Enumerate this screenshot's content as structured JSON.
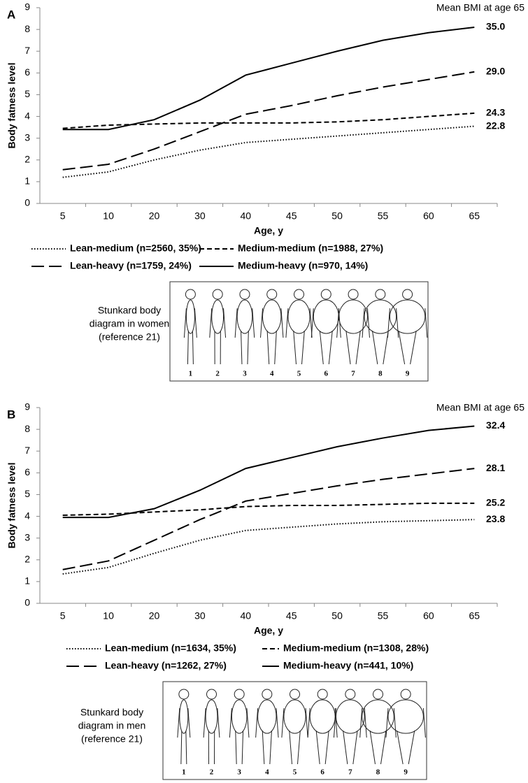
{
  "chart_data": [
    {
      "type": "line",
      "panel": "A",
      "annotation": "Mean BMI at age 65",
      "ylabel": "Body fatness level",
      "xlabel": "Age, y",
      "categories": [
        5,
        10,
        20,
        30,
        40,
        45,
        50,
        55,
        60,
        65
      ],
      "ylim": [
        0,
        9
      ],
      "yticks": [
        0,
        1,
        2,
        3,
        4,
        5,
        6,
        7,
        8,
        9
      ],
      "series": [
        {
          "name": "Lean-medium (n=2560, 35%)",
          "color": "#000000",
          "dash": "dotted",
          "end_label": "22.8",
          "values": [
            1.2,
            1.45,
            2.0,
            2.45,
            2.8,
            2.95,
            3.1,
            3.25,
            3.4,
            3.55
          ]
        },
        {
          "name": "Medium-medium (n=1988, 27%)",
          "color": "#000000",
          "dash": "short-dash",
          "end_label": "24.3",
          "values": [
            3.45,
            3.6,
            3.65,
            3.7,
            3.7,
            3.7,
            3.75,
            3.85,
            4.0,
            4.15
          ]
        },
        {
          "name": "Lean-heavy (n=1759, 24%)",
          "color": "#000000",
          "dash": "long-dash",
          "end_label": "29.0",
          "values": [
            1.55,
            1.8,
            2.5,
            3.3,
            4.1,
            4.5,
            4.95,
            5.35,
            5.7,
            6.05
          ]
        },
        {
          "name": "Medium-heavy (n=970, 14%)",
          "color": "#000000",
          "dash": "solid",
          "end_label": "35.0",
          "values": [
            3.4,
            3.4,
            3.85,
            4.75,
            5.9,
            6.45,
            7.0,
            7.5,
            7.85,
            8.1
          ]
        }
      ],
      "diagram": {
        "caption": [
          "Stunkard body",
          "diagram in women",
          "(reference 21)"
        ],
        "labels": [
          "1",
          "2",
          "3",
          "4",
          "5",
          "6",
          "7",
          "8",
          "9"
        ]
      }
    },
    {
      "type": "line",
      "panel": "B",
      "annotation": "Mean BMI at age 65",
      "ylabel": "Body fatness level",
      "xlabel": "Age, y",
      "categories": [
        5,
        10,
        20,
        30,
        40,
        45,
        50,
        55,
        60,
        65
      ],
      "ylim": [
        0,
        9
      ],
      "yticks": [
        0,
        1,
        2,
        3,
        4,
        5,
        6,
        7,
        8,
        9
      ],
      "series": [
        {
          "name": "Lean-medium (n=1634, 35%)",
          "color": "#000000",
          "dash": "dotted",
          "end_label": "23.8",
          "values": [
            1.35,
            1.65,
            2.3,
            2.9,
            3.35,
            3.5,
            3.65,
            3.75,
            3.8,
            3.85
          ]
        },
        {
          "name": "Medium-medium (n=1308, 28%)",
          "color": "#000000",
          "dash": "short-dash",
          "end_label": "25.2",
          "values": [
            4.05,
            4.1,
            4.2,
            4.3,
            4.45,
            4.5,
            4.5,
            4.55,
            4.6,
            4.6
          ]
        },
        {
          "name": "Lean-heavy (n=1262, 27%)",
          "color": "#000000",
          "dash": "long-dash",
          "end_label": "28.1",
          "values": [
            1.55,
            1.95,
            2.9,
            3.85,
            4.7,
            5.05,
            5.4,
            5.7,
            5.95,
            6.2
          ]
        },
        {
          "name": "Medium-heavy (n=441, 10%)",
          "color": "#000000",
          "dash": "solid",
          "end_label": "32.4",
          "values": [
            3.95,
            3.95,
            4.35,
            5.2,
            6.2,
            6.7,
            7.2,
            7.6,
            7.95,
            8.15
          ]
        }
      ],
      "diagram": {
        "caption": [
          "Stunkard body",
          "diagram in men",
          "(reference 21)"
        ],
        "labels": [
          "1",
          "2",
          "3",
          "4",
          "5",
          "6",
          "7",
          "8",
          "9"
        ]
      }
    }
  ]
}
